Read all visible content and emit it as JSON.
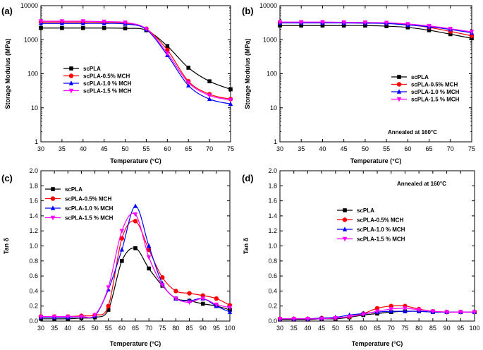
{
  "series_styles": [
    {
      "name": "scPLA",
      "color": "#000000",
      "marker": "square"
    },
    {
      "name": "scPLA-0.5% MCH",
      "color": "#ff0000",
      "marker": "circle"
    },
    {
      "name": "scPLA-1.0 % MCH",
      "color": "#0000ff",
      "marker": "triangle-up"
    },
    {
      "name": "scPLA-1.5 % MCH",
      "color": "#ff00ff",
      "marker": "triangle-down"
    }
  ],
  "chart_data": [
    {
      "panel": "(a)",
      "type": "line",
      "yscale": "log",
      "xlabel": "Temperature (°C)",
      "ylabel": "Storage Modulus (MPa)",
      "xlim": [
        30,
        75
      ],
      "ylim": [
        1,
        10000
      ],
      "xticks": [
        "30",
        "35",
        "40",
        "45",
        "50",
        "55",
        "60",
        "65",
        "70",
        "75"
      ],
      "yticks": [
        "1",
        "10",
        "100",
        "1000",
        "10000"
      ],
      "legend_position": "center-left",
      "annotation": "",
      "x": [
        30,
        35,
        40,
        45,
        50,
        55,
        60,
        65,
        70,
        75
      ],
      "series": [
        {
          "name": "scPLA",
          "values": [
            2200,
            2200,
            2200,
            2200,
            2150,
            1900,
            650,
            150,
            60,
            35
          ]
        },
        {
          "name": "scPLA-0.5% MCH",
          "values": [
            3300,
            3300,
            3300,
            3250,
            3100,
            2100,
            500,
            60,
            25,
            18
          ]
        },
        {
          "name": "scPLA-1.0 % MCH",
          "values": [
            3000,
            3000,
            3000,
            3000,
            2900,
            2000,
            350,
            45,
            18,
            13
          ]
        },
        {
          "name": "scPLA-1.5 % MCH",
          "values": [
            3500,
            3500,
            3500,
            3400,
            3200,
            2100,
            400,
            55,
            23,
            17
          ]
        }
      ]
    },
    {
      "panel": "(b)",
      "type": "line",
      "yscale": "log",
      "xlabel": "Temperature (°C)",
      "ylabel": "Storage Modulus (MPa)",
      "xlim": [
        30,
        75
      ],
      "ylim": [
        1,
        10000
      ],
      "xticks": [
        "30",
        "35",
        "40",
        "45",
        "50",
        "55",
        "60",
        "65",
        "70",
        "75"
      ],
      "yticks": [
        "1",
        "10",
        "100",
        "1000",
        "10000"
      ],
      "legend_position": "center-right",
      "annotation": "Annealed at 160°C",
      "x": [
        30,
        35,
        40,
        45,
        50,
        55,
        60,
        65,
        70,
        75
      ],
      "series": [
        {
          "name": "scPLA",
          "values": [
            2600,
            2600,
            2600,
            2600,
            2600,
            2500,
            2300,
            1900,
            1450,
            1100
          ]
        },
        {
          "name": "scPLA-0.5% MCH",
          "values": [
            3200,
            3200,
            3200,
            3200,
            3150,
            3050,
            2750,
            2300,
            1750,
            1300
          ]
        },
        {
          "name": "scPLA-1.0 % MCH",
          "values": [
            3100,
            3100,
            3100,
            3100,
            3050,
            3000,
            2700,
            2400,
            2000,
            1600
          ]
        },
        {
          "name": "scPLA-1.5 % MCH",
          "values": [
            3300,
            3300,
            3300,
            3250,
            3200,
            3150,
            2900,
            2550,
            2100,
            1700
          ]
        }
      ]
    },
    {
      "panel": "(c)",
      "type": "line",
      "yscale": "linear",
      "xlabel": "Temperature (°C)",
      "ylabel": "Tan δ",
      "xlim": [
        30,
        100
      ],
      "ylim": [
        0,
        2.0
      ],
      "xticks": [
        "30",
        "35",
        "40",
        "45",
        "50",
        "55",
        "60",
        "65",
        "70",
        "75",
        "80",
        "85",
        "90",
        "95",
        "100"
      ],
      "yticks": [
        "0.0",
        "0.2",
        "0.4",
        "0.6",
        "0.8",
        "1.0",
        "1.2",
        "1.4",
        "1.6",
        "1.8",
        "2.0"
      ],
      "legend_position": "top-left",
      "annotation": "",
      "x": [
        30,
        35,
        40,
        45,
        50,
        55,
        60,
        65,
        70,
        75,
        80,
        85,
        90,
        95,
        100
      ],
      "series": [
        {
          "name": "scPLA",
          "values": [
            0.03,
            0.03,
            0.03,
            0.04,
            0.05,
            0.15,
            0.8,
            0.97,
            0.7,
            0.47,
            0.3,
            0.27,
            0.23,
            0.2,
            0.15
          ]
        },
        {
          "name": "scPLA-0.5% MCH",
          "values": [
            0.06,
            0.06,
            0.06,
            0.07,
            0.08,
            0.2,
            1.1,
            1.33,
            0.95,
            0.58,
            0.4,
            0.37,
            0.34,
            0.3,
            0.21
          ]
        },
        {
          "name": "scPLA-1.0 % MCH",
          "values": [
            0.05,
            0.05,
            0.05,
            0.06,
            0.07,
            0.42,
            0.95,
            1.53,
            1.0,
            0.5,
            0.3,
            0.27,
            0.3,
            0.2,
            0.12
          ]
        },
        {
          "name": "scPLA-1.5 % MCH",
          "values": [
            0.06,
            0.06,
            0.06,
            0.06,
            0.08,
            0.45,
            1.2,
            1.42,
            0.85,
            0.48,
            0.3,
            0.25,
            0.3,
            0.22,
            0.18
          ]
        }
      ]
    },
    {
      "panel": "(d)",
      "type": "line",
      "yscale": "linear",
      "xlabel": "Temperature (°C)",
      "ylabel": "Tan δ",
      "xlim": [
        30,
        100
      ],
      "ylim": [
        0,
        2.0
      ],
      "xticks": [
        "30",
        "35",
        "40",
        "45",
        "50",
        "55",
        "60",
        "65",
        "70",
        "75",
        "80",
        "85",
        "90",
        "95",
        "100"
      ],
      "yticks": [
        "0.0",
        "0.2",
        "0.4",
        "0.6",
        "0.8",
        "1.0",
        "1.2",
        "1.4",
        "1.6",
        "1.8",
        "2.0"
      ],
      "legend_position": "center-left",
      "annotation": "Annealed at 160°C",
      "x": [
        30,
        35,
        40,
        45,
        50,
        55,
        60,
        65,
        70,
        75,
        80,
        85,
        90,
        95,
        100
      ],
      "series": [
        {
          "name": "scPLA",
          "values": [
            0.02,
            0.02,
            0.02,
            0.03,
            0.03,
            0.05,
            0.08,
            0.1,
            0.12,
            0.13,
            0.13,
            0.12,
            0.12,
            0.12,
            0.12
          ]
        },
        {
          "name": "scPLA-0.5% MCH",
          "values": [
            0.03,
            0.03,
            0.03,
            0.04,
            0.04,
            0.06,
            0.1,
            0.17,
            0.2,
            0.2,
            0.16,
            0.13,
            0.12,
            0.12,
            0.12
          ]
        },
        {
          "name": "scPLA-1.0 % MCH",
          "values": [
            0.03,
            0.03,
            0.03,
            0.04,
            0.05,
            0.08,
            0.1,
            0.12,
            0.13,
            0.13,
            0.13,
            0.12,
            0.12,
            0.12,
            0.12
          ]
        },
        {
          "name": "scPLA-1.5 % MCH",
          "values": [
            0.03,
            0.03,
            0.03,
            0.03,
            0.04,
            0.06,
            0.09,
            0.13,
            0.16,
            0.17,
            0.15,
            0.13,
            0.12,
            0.12,
            0.12
          ]
        }
      ]
    }
  ]
}
